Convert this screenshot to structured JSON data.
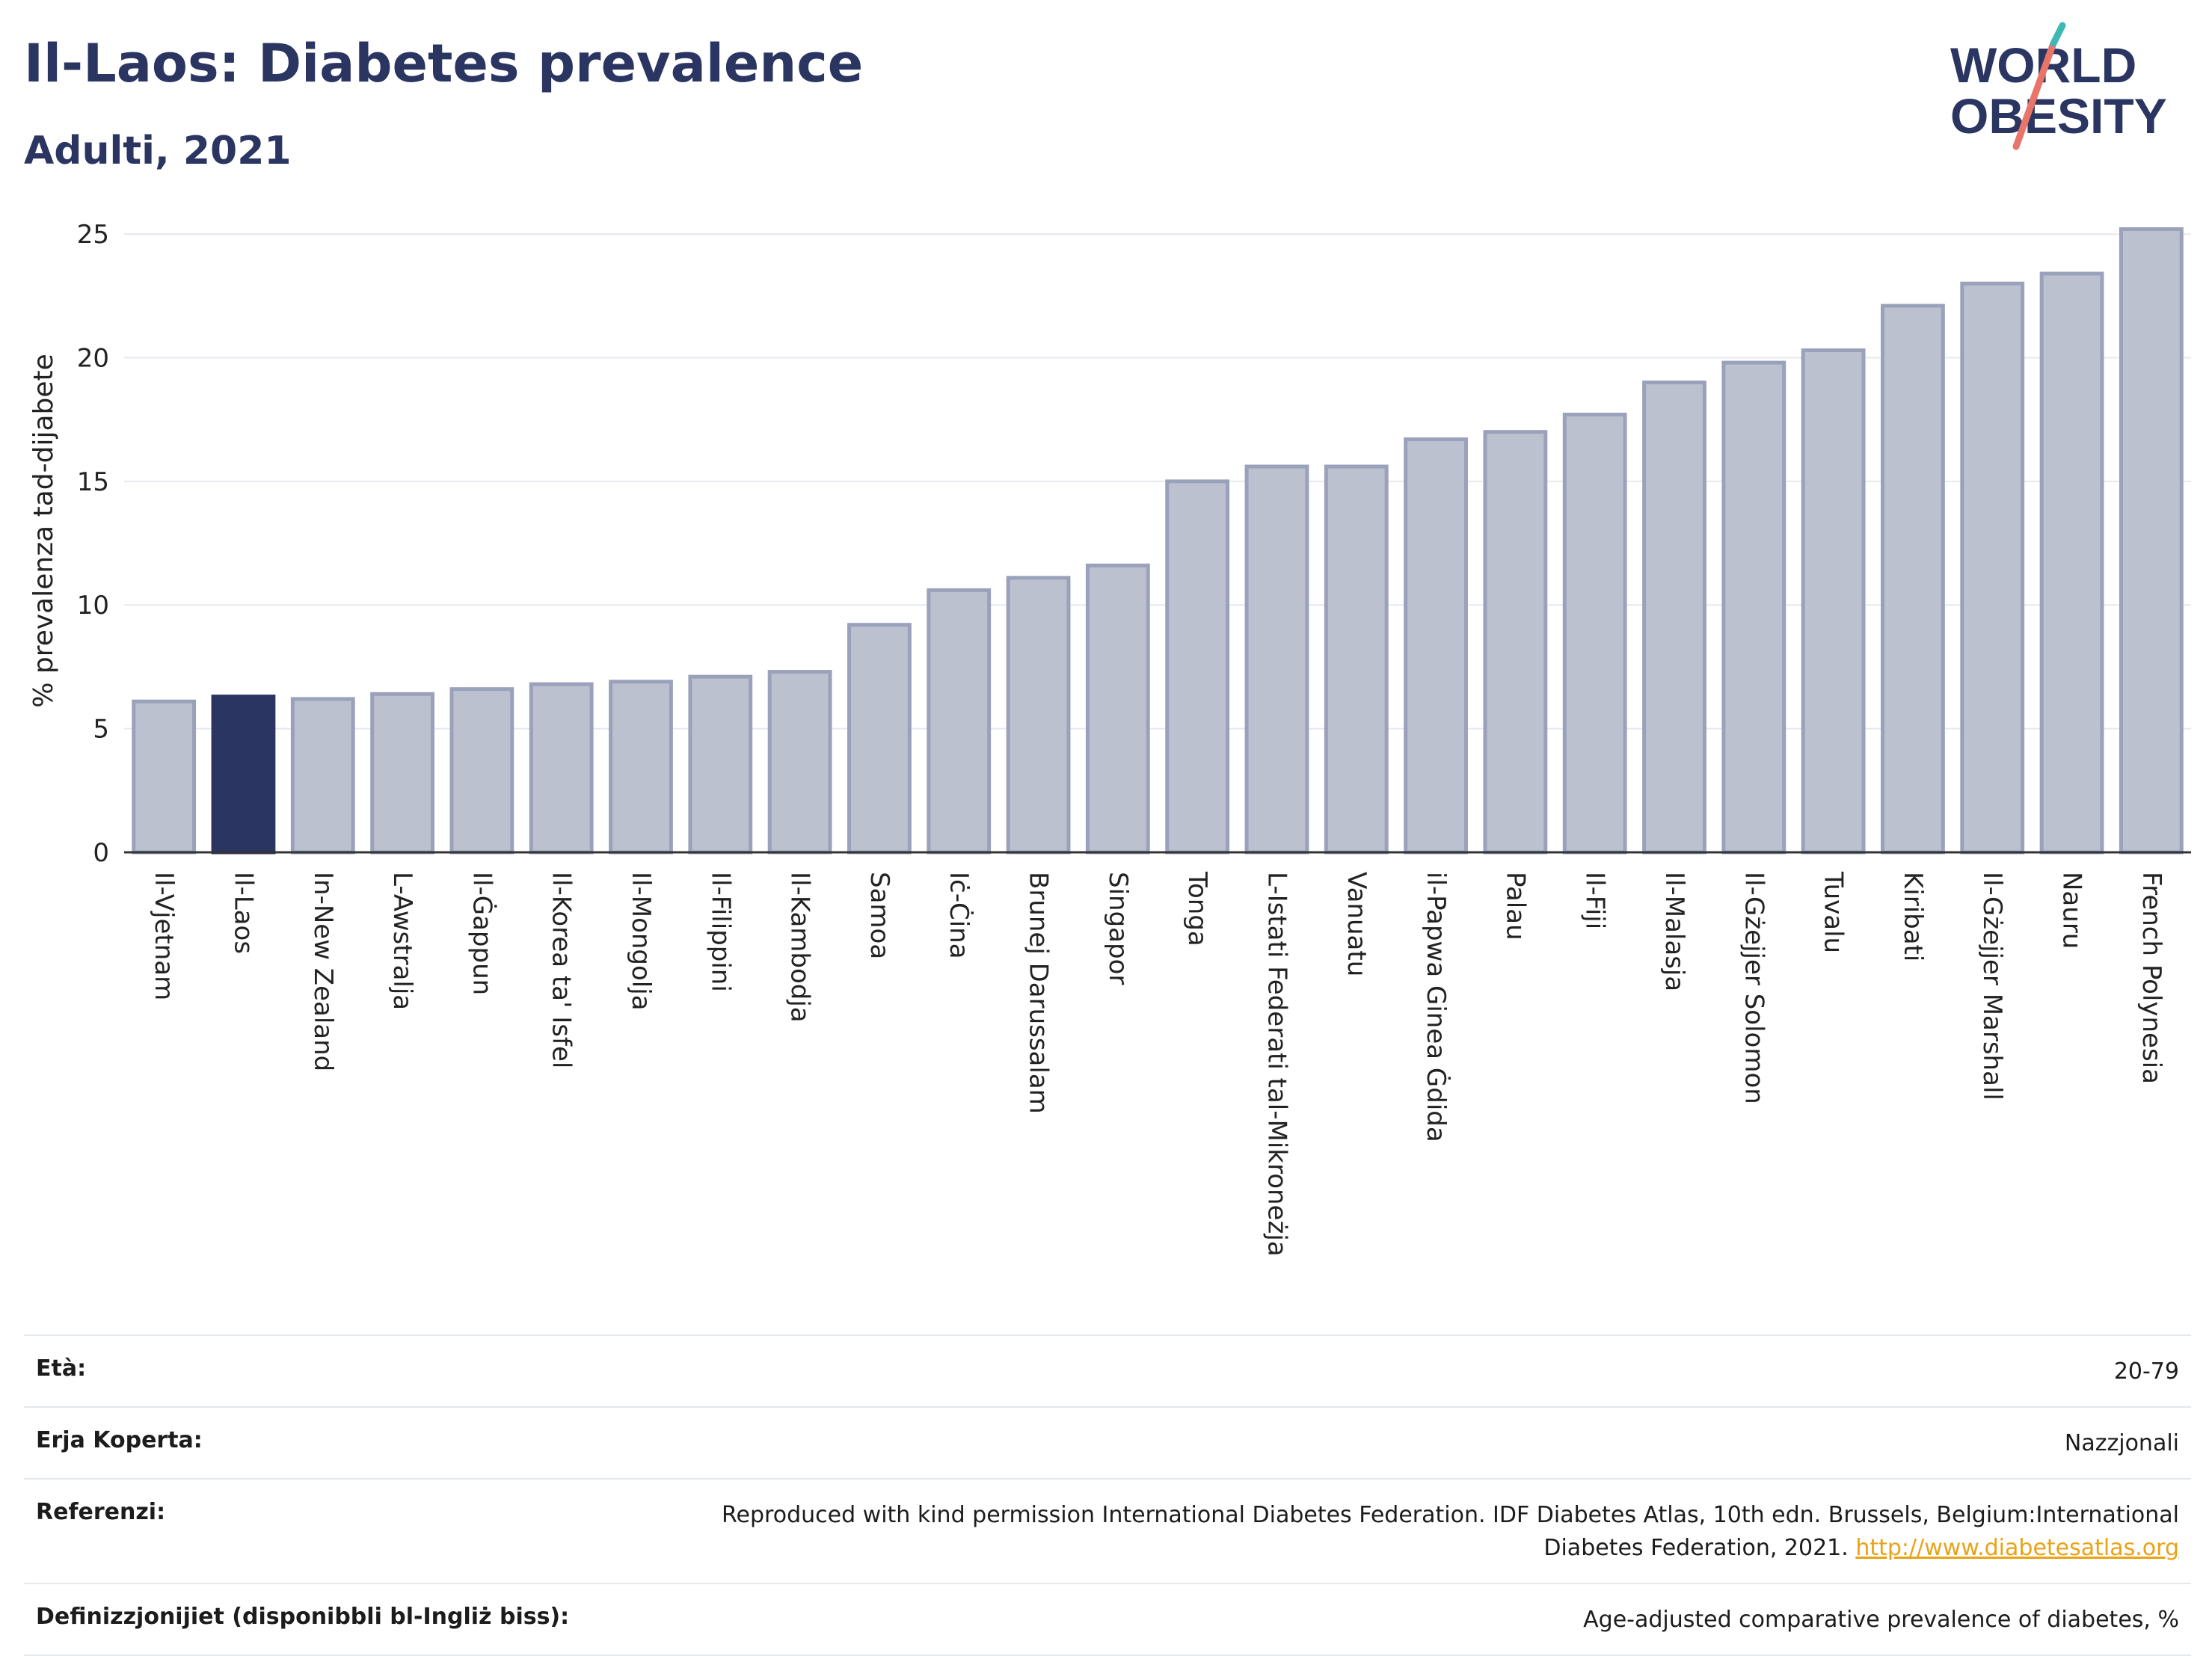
{
  "header": {
    "title": "Il-Laos: Diabetes prevalence",
    "subtitle": "Adulti, 2021"
  },
  "logo": {
    "line1": "WORLD",
    "line2": "OBESITY"
  },
  "colors": {
    "bar": "#bcc1d0",
    "bar_border": "#9aa1ba",
    "highlight": "#2b3561",
    "grid": "#e6e9ef",
    "text": "#2b3561"
  },
  "chart_data": {
    "type": "bar",
    "title": "Il-Laos: Diabetes prevalence",
    "subtitle": "Adulti, 2021",
    "xlabel": "",
    "ylabel": "% prevalenza tad-dijabete",
    "ylim": [
      0,
      26
    ],
    "yticks": [
      0,
      5,
      10,
      15,
      20,
      25
    ],
    "grid": true,
    "highlight": "Il-Laos",
    "categories": [
      "Il-Vjetnam",
      "Il-Laos",
      "In-New Zealand",
      "L-Awstralja",
      "Il-Ġappun",
      "Il-Korea ta' Isfel",
      "Il-Mongolja",
      "Il-Filippini",
      "Il-Kambodja",
      "Samoa",
      "Iċ-Ċina",
      "Brunej Darussalam",
      "Singapor",
      "Tonga",
      "L-Istati Federati tal-Mikroneżja",
      "Vanuatu",
      "il-Papwa Ginea Ġdida",
      "Palau",
      "Il-Fiji",
      "Il-Malasja",
      "Il-Gżejjer Solomon",
      "Tuvalu",
      "Kiribati",
      "Il-Gżejjer Marshall",
      "Nauru",
      "French Polynesia"
    ],
    "values": [
      6.1,
      6.3,
      6.2,
      6.4,
      6.6,
      6.8,
      6.9,
      7.1,
      7.3,
      9.2,
      10.6,
      11.1,
      11.6,
      15.0,
      15.6,
      15.6,
      16.7,
      17.0,
      17.7,
      19.0,
      19.8,
      20.3,
      22.1,
      23.0,
      23.4,
      25.2
    ]
  },
  "info": {
    "age_label": "Età:",
    "age_value": "20-79",
    "area_label": "Erja Koperta:",
    "area_value": "Nazzjonali",
    "ref_label": "Referenzi:",
    "ref_text": "Reproduced with kind permission International Diabetes Federation.  IDF Diabetes Atlas, 10th edn. Brussels, Belgium:International Diabetes Federation, 2021.",
    "ref_link": "http://www.diabetesatlas.org",
    "def_label": "Definizzjonijiet (disponibbli bl-Ingliż biss):",
    "def_value": "Age-adjusted comparative prevalence of diabetes, %"
  }
}
